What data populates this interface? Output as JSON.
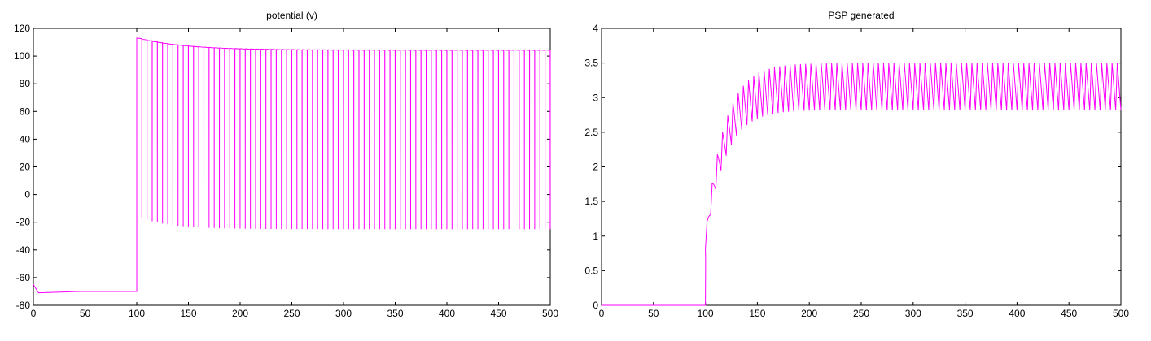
{
  "colors": {
    "trace": "#ff00ff",
    "axes": "#000000",
    "background": "#ffffff"
  },
  "chart_data": [
    {
      "type": "line",
      "title": "potential (v)",
      "xlabel": "",
      "ylabel": "",
      "xlim": [
        0,
        500
      ],
      "ylim": [
        -80,
        120
      ],
      "xticks": [
        0,
        50,
        100,
        150,
        200,
        250,
        300,
        350,
        400,
        450,
        500
      ],
      "yticks": [
        -80,
        -60,
        -40,
        -20,
        0,
        20,
        40,
        60,
        80,
        100,
        120
      ],
      "grid": false,
      "legend": "none",
      "description_series": {
        "resting_phase": {
          "x_start": 0,
          "x_end": 100,
          "value_start": -65,
          "value_min": -71,
          "value_plateau": -70
        },
        "spiking_phase": {
          "x_start": 100,
          "x_end": 500,
          "spike_period": 5,
          "peak_start": 113,
          "peak_steady": 104.5,
          "trough_start": -17,
          "trough_steady": -25
        }
      }
    },
    {
      "type": "line",
      "title": "PSP generated",
      "xlabel": "",
      "ylabel": "",
      "xlim": [
        0,
        500
      ],
      "ylim": [
        0,
        4
      ],
      "xticks": [
        0,
        50,
        100,
        150,
        200,
        250,
        300,
        350,
        400,
        450,
        500
      ],
      "yticks": [
        0,
        0.5,
        1,
        1.5,
        2,
        2.5,
        3,
        3.5,
        4
      ],
      "grid": false,
      "legend": "none",
      "description_series": {
        "onset_x": 100,
        "period": 5,
        "first_peak": 1.0,
        "first_trough": 0.82,
        "steady_peak": 3.5,
        "steady_trough": 2.82
      }
    }
  ]
}
